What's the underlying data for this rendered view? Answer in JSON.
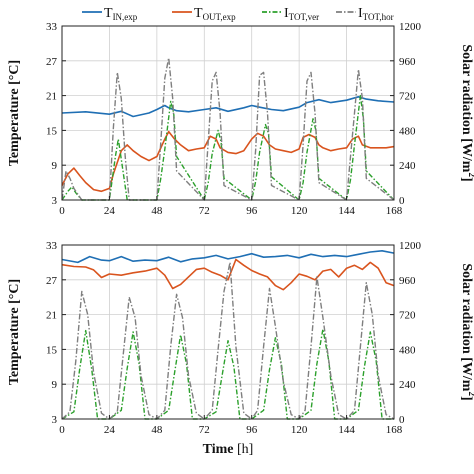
{
  "chart_data": [
    {
      "type": "line",
      "panel": "top",
      "x_range": [
        0,
        168
      ],
      "x_ticks": [
        0,
        24,
        48,
        72,
        96,
        120,
        144,
        168
      ],
      "y_left": {
        "label": "Temperature [°C]",
        "range": [
          3,
          33
        ],
        "ticks": [
          3,
          9,
          15,
          21,
          27,
          33
        ]
      },
      "y_right": {
        "label": "Solar radiation [W/m²]",
        "label_main": "Solar radiation [W/m",
        "label_sup": "2",
        "label_end": "]",
        "range": [
          0,
          1200
        ],
        "ticks": [
          0,
          240,
          480,
          720,
          960,
          1200
        ]
      },
      "grid": true,
      "legend": {
        "placement": "top",
        "entries": [
          {
            "main": "T",
            "sub": "IN,exp"
          },
          {
            "main": "T",
            "sub": "OUT,exp"
          },
          {
            "main": "I",
            "sub": "TOT,ver"
          },
          {
            "main": "I",
            "sub": "TOT,hor"
          }
        ]
      },
      "series": [
        {
          "name": "T_IN,exp",
          "axis": "left",
          "color": "#1f6fb4",
          "dash": "",
          "x": [
            0,
            12,
            24,
            30,
            36,
            44,
            48,
            52,
            54,
            58,
            64,
            72,
            78,
            84,
            92,
            96,
            100,
            106,
            112,
            120,
            124,
            130,
            136,
            144,
            150,
            154,
            160,
            168
          ],
          "y": [
            18.0,
            18.2,
            17.8,
            18.3,
            17.4,
            18.0,
            18.6,
            19.3,
            18.9,
            18.4,
            18.2,
            18.6,
            18.9,
            18.3,
            18.9,
            19.3,
            19.0,
            18.6,
            18.4,
            19.0,
            19.8,
            20.3,
            19.8,
            20.2,
            20.8,
            20.4,
            20.1,
            19.9
          ]
        },
        {
          "name": "T_OUT,exp",
          "axis": "left",
          "color": "#d9541e",
          "dash": "",
          "x": [
            0,
            3,
            6,
            9,
            12,
            16,
            20,
            24,
            26,
            30,
            33,
            36,
            40,
            44,
            48,
            52,
            54,
            57,
            60,
            64,
            68,
            72,
            75,
            78,
            80,
            84,
            88,
            92,
            96,
            99,
            102,
            105,
            108,
            112,
            116,
            120,
            122,
            125,
            128,
            130,
            132,
            136,
            140,
            144,
            147,
            150,
            152,
            156,
            160,
            164,
            168
          ],
          "y": [
            5.5,
            7.5,
            8.5,
            7.2,
            6.0,
            4.8,
            4.5,
            5.0,
            7.5,
            11.5,
            12.5,
            11.5,
            10.5,
            9.8,
            10.5,
            13.5,
            14.8,
            13.5,
            12.5,
            11.5,
            11.8,
            12.0,
            14.0,
            13.5,
            12.0,
            11.2,
            11.0,
            11.5,
            13.5,
            14.5,
            14.0,
            12.5,
            11.8,
            11.5,
            11.2,
            11.8,
            13.8,
            14.3,
            13.8,
            12.5,
            12.0,
            11.5,
            11.8,
            12.0,
            13.5,
            14.0,
            12.5,
            12.0,
            12.0,
            12.0,
            12.2
          ]
        },
        {
          "name": "I_TOT,ver",
          "axis": "right",
          "color": "#2ca02c",
          "dash": "5,2,1.5,2",
          "x": [
            0,
            3,
            5,
            7,
            10,
            24,
            27,
            28.5,
            30,
            33,
            48,
            50,
            52,
            55,
            56.5,
            58,
            72,
            74,
            76,
            79,
            80.5,
            82,
            96,
            98,
            100,
            103,
            104.5,
            106,
            120,
            122,
            124,
            127,
            128.5,
            130,
            144,
            146,
            148,
            151,
            152.5,
            154,
            168
          ],
          "y": [
            0,
            60,
            90,
            50,
            0,
            0,
            300,
            420,
            280,
            0,
            0,
            150,
            350,
            680,
            600,
            300,
            0,
            120,
            320,
            480,
            400,
            150,
            0,
            130,
            330,
            520,
            460,
            160,
            0,
            120,
            330,
            560,
            480,
            150,
            0,
            140,
            380,
            720,
            560,
            200,
            0
          ]
        },
        {
          "name": "I_TOT,hor",
          "axis": "right",
          "color": "#7f7f7f",
          "dash": "6,2,1.5,2",
          "x": [
            0,
            2,
            4,
            6,
            10,
            24,
            26,
            28,
            30,
            32,
            34,
            48,
            50,
            52,
            54,
            56,
            58,
            72,
            74,
            76,
            78,
            80,
            82,
            96,
            98,
            100,
            102,
            104,
            106,
            120,
            122,
            124,
            126,
            128,
            130,
            144,
            146,
            148,
            150,
            152,
            154,
            168
          ],
          "y": [
            0,
            200,
            150,
            80,
            0,
            0,
            500,
            880,
            700,
            300,
            0,
            0,
            400,
            840,
            980,
            700,
            200,
            0,
            400,
            820,
            880,
            600,
            100,
            0,
            350,
            860,
            880,
            600,
            100,
            0,
            380,
            820,
            880,
            600,
            120,
            0,
            300,
            600,
            900,
            700,
            150,
            0
          ]
        }
      ]
    },
    {
      "type": "line",
      "panel": "bottom",
      "x_range": [
        0,
        168
      ],
      "x_ticks": [
        0,
        24,
        48,
        72,
        96,
        120,
        144,
        168
      ],
      "x_label": "Time [h]",
      "x_label_main": "Time",
      "x_label_unit": " [h]",
      "y_left": {
        "label": "Temperature [°C]",
        "range": [
          3,
          33
        ],
        "ticks": [
          3,
          9,
          15,
          21,
          27,
          33
        ]
      },
      "y_right": {
        "label": "Solar radiation [W/m²]",
        "label_main": "Solar radiation [W/m",
        "label_sup": "2",
        "label_end": "]",
        "range": [
          0,
          1200
        ],
        "ticks": [
          0,
          240,
          480,
          720,
          960,
          1200
        ]
      },
      "grid": true,
      "series": [
        {
          "name": "T_IN,exp",
          "axis": "left",
          "color": "#1f6fb4",
          "dash": "",
          "x": [
            0,
            8,
            14,
            20,
            24,
            30,
            36,
            42,
            48,
            54,
            60,
            66,
            72,
            78,
            84,
            90,
            96,
            102,
            108,
            114,
            120,
            126,
            132,
            138,
            144,
            150,
            156,
            162,
            168
          ],
          "y": [
            30.5,
            30.0,
            31.0,
            30.4,
            30.3,
            31.0,
            30.2,
            30.4,
            30.3,
            30.9,
            30.1,
            30.6,
            30.8,
            31.2,
            30.6,
            31.0,
            31.5,
            30.9,
            31.0,
            31.2,
            30.8,
            31.4,
            31.0,
            31.2,
            31.0,
            31.4,
            31.8,
            32.0,
            31.6
          ]
        },
        {
          "name": "T_OUT,exp",
          "axis": "left",
          "color": "#d9541e",
          "dash": "",
          "x": [
            0,
            6,
            12,
            16,
            20,
            24,
            30,
            36,
            42,
            48,
            52,
            56,
            60,
            64,
            68,
            72,
            76,
            80,
            84,
            88,
            92,
            96,
            100,
            104,
            108,
            112,
            116,
            120,
            124,
            128,
            132,
            136,
            140,
            144,
            148,
            152,
            156,
            160,
            164,
            168
          ],
          "y": [
            29.6,
            29.3,
            29.2,
            28.7,
            27.4,
            28.0,
            27.8,
            28.2,
            28.5,
            29.0,
            27.8,
            25.5,
            26.2,
            27.5,
            28.8,
            29.0,
            28.3,
            27.8,
            27.0,
            30.5,
            29.5,
            28.6,
            28.0,
            27.5,
            26.0,
            25.3,
            26.5,
            28.0,
            27.6,
            27.0,
            28.5,
            28.8,
            27.5,
            29.0,
            29.5,
            28.8,
            30.0,
            29.0,
            26.5,
            26.0
          ]
        },
        {
          "name": "I_TOT,ver",
          "axis": "right",
          "color": "#2ca02c",
          "dash": "5,2,1.5,2",
          "x": [
            0,
            6,
            9,
            12,
            15,
            18,
            24,
            30,
            33,
            36,
            39,
            42,
            48,
            54,
            57,
            60,
            63,
            66,
            72,
            78,
            81,
            84,
            87,
            90,
            96,
            102,
            105,
            108,
            111,
            114,
            120,
            126,
            129,
            132,
            135,
            138,
            144,
            150,
            153,
            156,
            159,
            162,
            168
          ],
          "y": [
            0,
            50,
            350,
            610,
            350,
            0,
            0,
            60,
            350,
            600,
            380,
            0,
            0,
            60,
            320,
            580,
            380,
            0,
            0,
            50,
            300,
            540,
            360,
            0,
            0,
            60,
            340,
            560,
            380,
            0,
            0,
            60,
            380,
            620,
            400,
            0,
            0,
            60,
            360,
            600,
            400,
            0,
            0
          ]
        },
        {
          "name": "I_TOT,hor",
          "axis": "right",
          "color": "#7f7f7f",
          "dash": "6,2,1.5,2",
          "x": [
            0,
            4,
            7,
            10,
            13,
            16,
            20,
            24,
            28,
            31,
            34,
            37,
            40,
            44,
            48,
            52,
            55,
            58,
            61,
            64,
            68,
            72,
            76,
            79,
            82,
            85,
            88,
            92,
            96,
            99,
            102,
            105,
            108,
            112,
            116,
            120,
            123,
            126,
            129,
            132,
            136,
            140,
            144,
            148,
            151,
            154,
            157,
            160,
            164,
            168
          ],
          "y": [
            0,
            50,
            400,
            880,
            720,
            320,
            40,
            0,
            50,
            450,
            840,
            700,
            300,
            30,
            0,
            60,
            500,
            860,
            700,
            300,
            40,
            0,
            60,
            480,
            880,
            1080,
            500,
            40,
            0,
            60,
            500,
            900,
            640,
            260,
            30,
            0,
            60,
            500,
            980,
            700,
            300,
            30,
            0,
            60,
            500,
            940,
            720,
            300,
            30,
            0
          ]
        }
      ]
    }
  ]
}
